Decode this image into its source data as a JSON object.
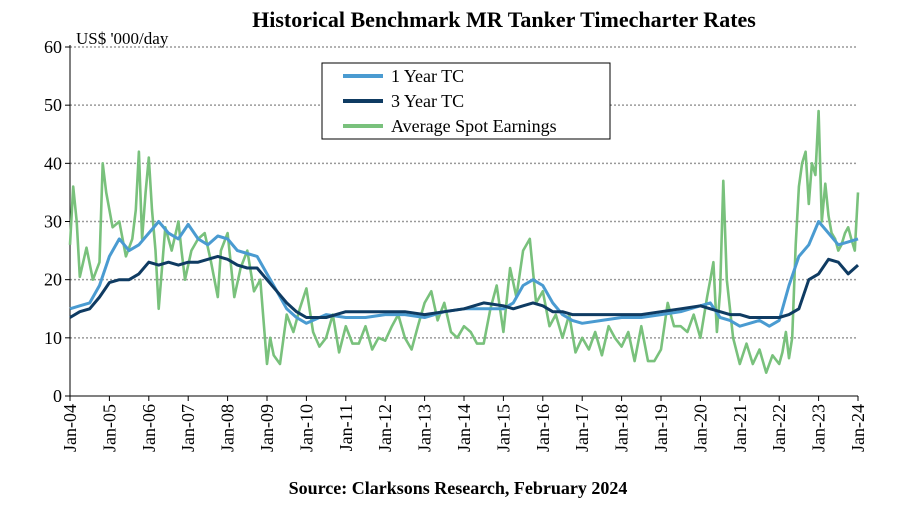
{
  "chart_data": {
    "type": "line",
    "title": "Historical Benchmark MR Tanker Timecharter Rates",
    "ylabel": "US$ '000/day",
    "source": "Source: Clarksons Research, February 2024",
    "ylim": [
      0,
      60
    ],
    "yticks": [
      0,
      10,
      20,
      30,
      40,
      50,
      60
    ],
    "xlim": [
      2004,
      2024
    ],
    "xtick_labels": [
      "Jan-04",
      "Jan-05",
      "Jan-06",
      "Jan-07",
      "Jan-08",
      "Jan-09",
      "Jan-10",
      "Jan-11",
      "Jan-12",
      "Jan-13",
      "Jan-14",
      "Jan-15",
      "Jan-16",
      "Jan-17",
      "Jan-18",
      "Jan-19",
      "Jan-20",
      "Jan-21",
      "Jan-22",
      "Jan-23",
      "Jan-24"
    ],
    "grid": true,
    "legend_position": "top-center",
    "series": [
      {
        "name": "1 Year TC",
        "color": "#4a9bd1",
        "x": [
          2004.0,
          2004.25,
          2004.5,
          2004.75,
          2005.0,
          2005.25,
          2005.5,
          2005.75,
          2006.0,
          2006.25,
          2006.5,
          2006.75,
          2007.0,
          2007.25,
          2007.5,
          2007.75,
          2008.0,
          2008.25,
          2008.5,
          2008.75,
          2009.0,
          2009.25,
          2009.5,
          2009.75,
          2010.0,
          2010.5,
          2011.0,
          2011.5,
          2012.0,
          2012.5,
          2013.0,
          2013.5,
          2014.0,
          2014.5,
          2015.0,
          2015.25,
          2015.5,
          2015.75,
          2016.0,
          2016.25,
          2016.5,
          2016.75,
          2017.0,
          2017.5,
          2018.0,
          2018.5,
          2019.0,
          2019.5,
          2020.0,
          2020.25,
          2020.5,
          2020.75,
          2021.0,
          2021.25,
          2021.5,
          2021.75,
          2022.0,
          2022.25,
          2022.5,
          2022.75,
          2023.0,
          2023.25,
          2023.5,
          2023.75,
          2024.0
        ],
        "values": [
          15,
          15.5,
          16,
          19,
          24,
          27,
          25,
          26,
          28,
          30,
          28,
          27,
          29.5,
          27,
          26,
          27.5,
          27,
          25,
          24.5,
          24,
          21,
          18,
          15,
          13.5,
          12.5,
          14,
          13.5,
          13.5,
          14,
          14,
          13.5,
          14.5,
          15,
          15,
          15,
          16,
          19,
          20,
          19,
          16,
          14,
          13,
          12.5,
          13,
          13.5,
          13.5,
          14,
          14.5,
          15.5,
          16,
          13.5,
          13,
          12,
          12.5,
          13,
          12,
          13,
          19,
          24,
          26,
          30,
          28,
          26,
          26.5,
          27
        ]
      },
      {
        "name": "3 Year TC",
        "color": "#0f3b62",
        "x": [
          2004.0,
          2004.25,
          2004.5,
          2004.75,
          2005.0,
          2005.25,
          2005.5,
          2005.75,
          2006.0,
          2006.25,
          2006.5,
          2006.75,
          2007.0,
          2007.25,
          2007.5,
          2007.75,
          2008.0,
          2008.25,
          2008.5,
          2008.75,
          2009.0,
          2009.25,
          2009.5,
          2009.75,
          2010.0,
          2010.5,
          2011.0,
          2011.5,
          2012.0,
          2012.5,
          2013.0,
          2013.5,
          2014.0,
          2014.5,
          2015.0,
          2015.25,
          2015.5,
          2015.75,
          2016.0,
          2016.25,
          2016.5,
          2016.75,
          2017.0,
          2017.5,
          2018.0,
          2018.5,
          2019.0,
          2019.5,
          2020.0,
          2020.25,
          2020.5,
          2020.75,
          2021.0,
          2021.25,
          2021.5,
          2021.75,
          2022.0,
          2022.25,
          2022.5,
          2022.75,
          2023.0,
          2023.25,
          2023.5,
          2023.75,
          2024.0
        ],
        "values": [
          13.5,
          14.5,
          15,
          17,
          19.5,
          20,
          20,
          21,
          23,
          22.5,
          23,
          22.5,
          23,
          23,
          23.5,
          24,
          23.5,
          22.5,
          22,
          22,
          20,
          18,
          16,
          14.5,
          13.5,
          13.5,
          14.5,
          14.5,
          14.5,
          14.5,
          14,
          14.5,
          15,
          16,
          15.5,
          15,
          15.5,
          16,
          15.5,
          14.5,
          14.5,
          14,
          14,
          14,
          14,
          14,
          14.5,
          15,
          15.5,
          15,
          14.5,
          14,
          14,
          13.5,
          13.5,
          13.5,
          13.5,
          14,
          15,
          20,
          21,
          23.5,
          23,
          21,
          22.5
        ]
      },
      {
        "name": "Average Spot Earnings",
        "color": "#79c17c",
        "x": [
          2004.0,
          2004.08,
          2004.17,
          2004.25,
          2004.42,
          2004.58,
          2004.75,
          2004.83,
          2004.92,
          2005.08,
          2005.25,
          2005.42,
          2005.58,
          2005.67,
          2005.75,
          2005.83,
          2005.92,
          2006.0,
          2006.08,
          2006.17,
          2006.25,
          2006.42,
          2006.58,
          2006.75,
          2006.83,
          2006.92,
          2007.08,
          2007.25,
          2007.42,
          2007.58,
          2007.75,
          2007.83,
          2008.0,
          2008.17,
          2008.33,
          2008.5,
          2008.67,
          2008.83,
          2009.0,
          2009.08,
          2009.17,
          2009.33,
          2009.5,
          2009.67,
          2009.83,
          2010.0,
          2010.17,
          2010.33,
          2010.5,
          2010.67,
          2010.83,
          2011.0,
          2011.17,
          2011.33,
          2011.5,
          2011.67,
          2011.83,
          2012.0,
          2012.17,
          2012.33,
          2012.5,
          2012.67,
          2012.83,
          2013.0,
          2013.17,
          2013.33,
          2013.5,
          2013.67,
          2013.83,
          2014.0,
          2014.17,
          2014.33,
          2014.5,
          2014.67,
          2014.83,
          2015.0,
          2015.17,
          2015.33,
          2015.5,
          2015.67,
          2015.83,
          2016.0,
          2016.17,
          2016.33,
          2016.5,
          2016.67,
          2016.83,
          2017.0,
          2017.17,
          2017.33,
          2017.5,
          2017.67,
          2017.83,
          2018.0,
          2018.17,
          2018.33,
          2018.5,
          2018.67,
          2018.83,
          2019.0,
          2019.17,
          2019.33,
          2019.5,
          2019.67,
          2019.83,
          2020.0,
          2020.17,
          2020.25,
          2020.33,
          2020.42,
          2020.5,
          2020.58,
          2020.67,
          2020.83,
          2021.0,
          2021.17,
          2021.33,
          2021.5,
          2021.67,
          2021.83,
          2022.0,
          2022.08,
          2022.17,
          2022.25,
          2022.33,
          2022.42,
          2022.5,
          2022.58,
          2022.67,
          2022.75,
          2022.83,
          2022.92,
          2023.0,
          2023.08,
          2023.17,
          2023.25,
          2023.33,
          2023.42,
          2023.5,
          2023.58,
          2023.67,
          2023.75,
          2023.83,
          2023.92,
          2024.0
        ],
        "values": [
          26,
          36,
          30,
          20.5,
          25.5,
          20,
          23,
          40,
          35,
          29,
          30,
          24,
          27,
          32,
          42,
          27,
          35,
          41,
          32,
          25,
          15,
          29,
          25,
          30,
          25,
          20,
          25,
          27,
          28,
          23,
          17,
          25,
          28,
          17,
          22,
          25,
          18,
          20,
          5.5,
          10,
          7,
          5.5,
          14,
          11,
          15,
          18.5,
          11,
          8.5,
          10,
          14,
          7.5,
          12,
          9,
          9,
          12,
          8,
          10,
          9.5,
          12,
          14,
          10,
          8,
          12,
          16,
          18,
          13,
          16,
          11,
          10,
          12,
          11,
          9,
          9,
          15,
          19,
          11,
          22,
          17,
          25,
          27,
          16,
          18,
          12,
          14,
          10,
          14,
          7.5,
          10,
          8,
          11,
          7,
          12,
          10,
          8.5,
          11,
          6,
          12,
          6,
          6,
          8,
          16,
          12,
          12,
          11,
          14,
          10,
          17,
          20,
          23,
          11,
          18,
          37,
          20,
          10,
          5.5,
          9,
          5.5,
          8,
          4,
          7,
          5.5,
          7.5,
          11,
          6.5,
          10,
          26,
          36,
          40,
          42,
          33,
          40,
          38,
          49,
          30,
          36.5,
          31,
          28,
          27,
          25,
          26,
          28,
          29,
          27,
          25,
          35
        ]
      }
    ]
  }
}
